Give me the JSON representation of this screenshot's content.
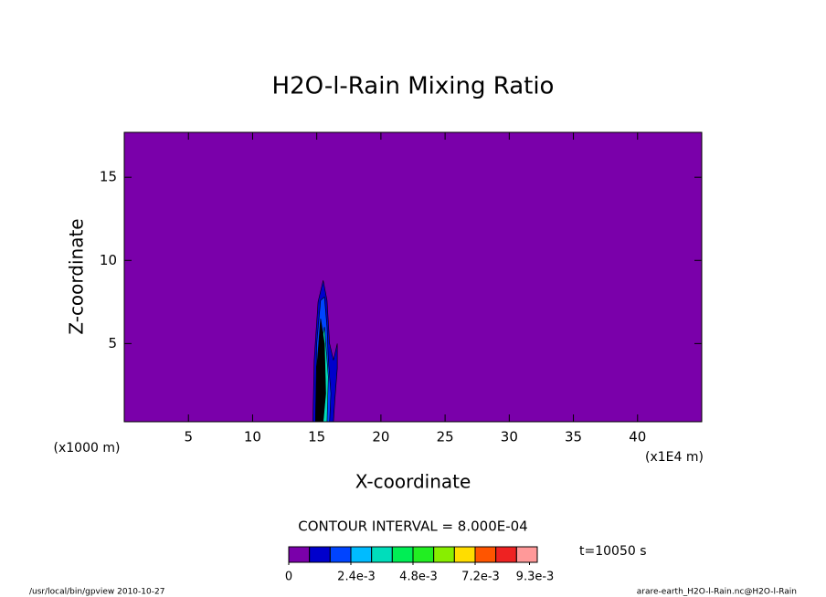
{
  "chart_data": {
    "type": "contour",
    "title": "H2O-l-Rain Mixing Ratio",
    "x_label": "X-coordinate",
    "y_label": "Z-coordinate",
    "x_unit": "(x1E4 m)",
    "y_unit": "(x1000 m)",
    "xlim": [
      0,
      45
    ],
    "ylim": [
      0.3,
      17.7
    ],
    "xticks": [
      5,
      10,
      15,
      20,
      25,
      30,
      35,
      40
    ],
    "yticks": [
      5,
      10,
      15
    ],
    "regions": [
      {
        "level": 0.0008,
        "color": "#0000cc",
        "x": [
          14.7,
          14.8,
          15.1,
          15.5,
          15.8,
          16.0,
          16.3,
          16.6,
          16.6,
          16.4,
          16.3
        ],
        "z": [
          0.3,
          4,
          7.5,
          8.8,
          7.6,
          5,
          4,
          5,
          3.5,
          1.5,
          0.3
        ]
      },
      {
        "level": 0.0016,
        "color": "#0044ff",
        "x": [
          14.9,
          15.0,
          15.3,
          15.6,
          15.8,
          15.9,
          16.1,
          16.0
        ],
        "z": [
          0.3,
          5,
          7.6,
          7.8,
          6,
          4,
          2,
          0.3
        ]
      },
      {
        "level": 0.0032,
        "color": "#00ddbb",
        "x": [
          15.0,
          15.2,
          15.6,
          15.9,
          15.8
        ],
        "z": [
          0.3,
          4.5,
          6,
          3,
          0.3
        ]
      },
      {
        "level": 0.0024,
        "color": "#000000",
        "x": [
          14.9,
          15.0,
          15.3,
          15.6,
          15.7,
          15.5
        ],
        "z": [
          0.3,
          3.5,
          6.5,
          5,
          2,
          0.3
        ]
      }
    ],
    "contour_interval": "CONTOUR INTERVAL = 8.000E-04",
    "colorbar": {
      "lim": [
        0,
        0.0096
      ],
      "colors": [
        "#7a00aa",
        "#0000cc",
        "#0044ff",
        "#00bbff",
        "#00ddbb",
        "#00ee55",
        "#22ee22",
        "#88ee00",
        "#ffdd00",
        "#ff5500",
        "#ee2222",
        "#ff9999"
      ],
      "ticks": [
        0,
        {
          "value": 0.0024,
          "label": "2.4e-3"
        },
        {
          "value": 0.0048,
          "label": "4.8e-3"
        },
        {
          "value": 0.0072,
          "label": "7.2e-3"
        },
        {
          "value": 0.0093,
          "label": "9.3e-3"
        }
      ]
    },
    "time_label": "t=10050 s",
    "footer_left": "/usr/local/bin/gpview  2010-10-27",
    "footer_right": "arare-earth_H2O-l-Rain.nc@H2O-l-Rain"
  }
}
